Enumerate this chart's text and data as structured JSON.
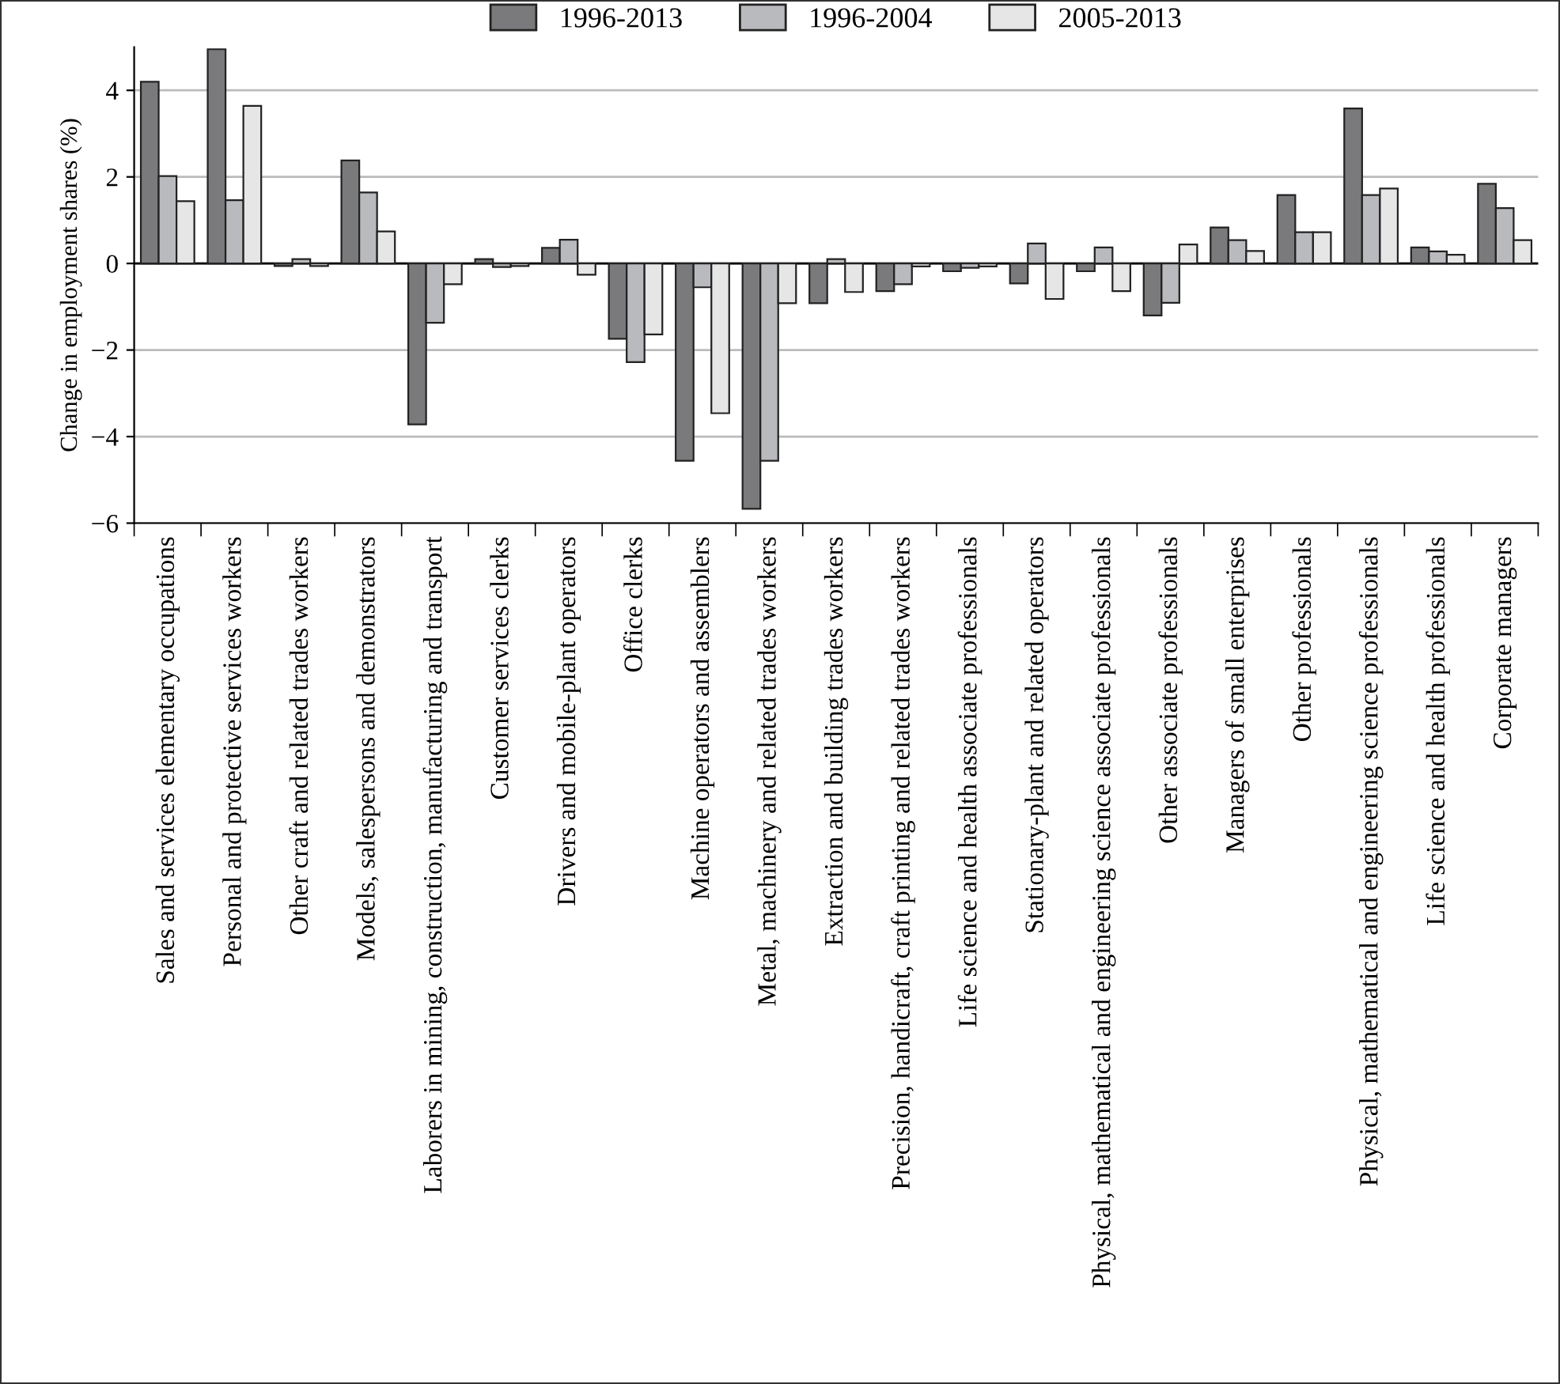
{
  "chart_data": {
    "type": "bar",
    "ylabel": "Change in employment shares (%)",
    "categories": [
      "Sales and services elementary occupations",
      "Personal and protective services workers",
      "Other craft and related trades workers",
      "Models, salespersons and demonstrators",
      "Laborers in mining, construction, manufacturing and transport",
      "Customer services clerks",
      "Drivers and mobile-plant operators",
      "Office clerks",
      "Machine operators and assemblers",
      "Metal, machinery and related trades workers",
      "Extraction and building trades workers",
      "Precision, handicraft, craft printing and related trades workers",
      "Life science and health associate professionals",
      "Stationary-plant and related operators",
      "Physical, mathematical and engineering science associate professionals",
      "Other associate professionals",
      "Managers of small enterprises",
      "Other professionals",
      "Physical, mathematical and engineering science professionals",
      "Life science and health professionals",
      "Corporate managers"
    ],
    "series": [
      {
        "name": "1996-2013",
        "color": "#7a7a7c",
        "values": [
          4.2,
          4.95,
          -0.06,
          2.38,
          -3.72,
          0.1,
          0.36,
          -1.74,
          -4.56,
          -5.67,
          -0.92,
          -0.64,
          -0.18,
          -0.46,
          -0.18,
          -1.2,
          0.83,
          1.58,
          3.58,
          0.37,
          1.84
        ]
      },
      {
        "name": "1996-2004",
        "color": "#b9babd",
        "values": [
          2.02,
          1.46,
          0.1,
          1.64,
          -1.37,
          -0.08,
          0.55,
          -2.28,
          -0.55,
          -4.56,
          0.1,
          -0.48,
          -0.1,
          0.46,
          0.37,
          -0.91,
          0.54,
          0.72,
          1.58,
          0.28,
          1.28
        ]
      },
      {
        "name": "2005-2013",
        "color": "#e6e6e6",
        "values": [
          1.44,
          3.64,
          -0.06,
          0.74,
          -0.48,
          -0.06,
          -0.26,
          -1.64,
          -3.46,
          -0.92,
          -0.66,
          -0.07,
          -0.07,
          -0.82,
          -0.64,
          0.44,
          0.29,
          0.72,
          1.73,
          0.2,
          0.54
        ]
      }
    ],
    "ylim": [
      -6,
      5
    ],
    "yticks": [
      {
        "value": -6,
        "label": "−6"
      },
      {
        "value": -4,
        "label": "−4"
      },
      {
        "value": -2,
        "label": "−2"
      },
      0,
      2,
      4
    ],
    "grid": "y",
    "legend": "top",
    "ref_lines": [
      {
        "axis": "y",
        "value": 0,
        "color": "#000000"
      }
    ]
  }
}
